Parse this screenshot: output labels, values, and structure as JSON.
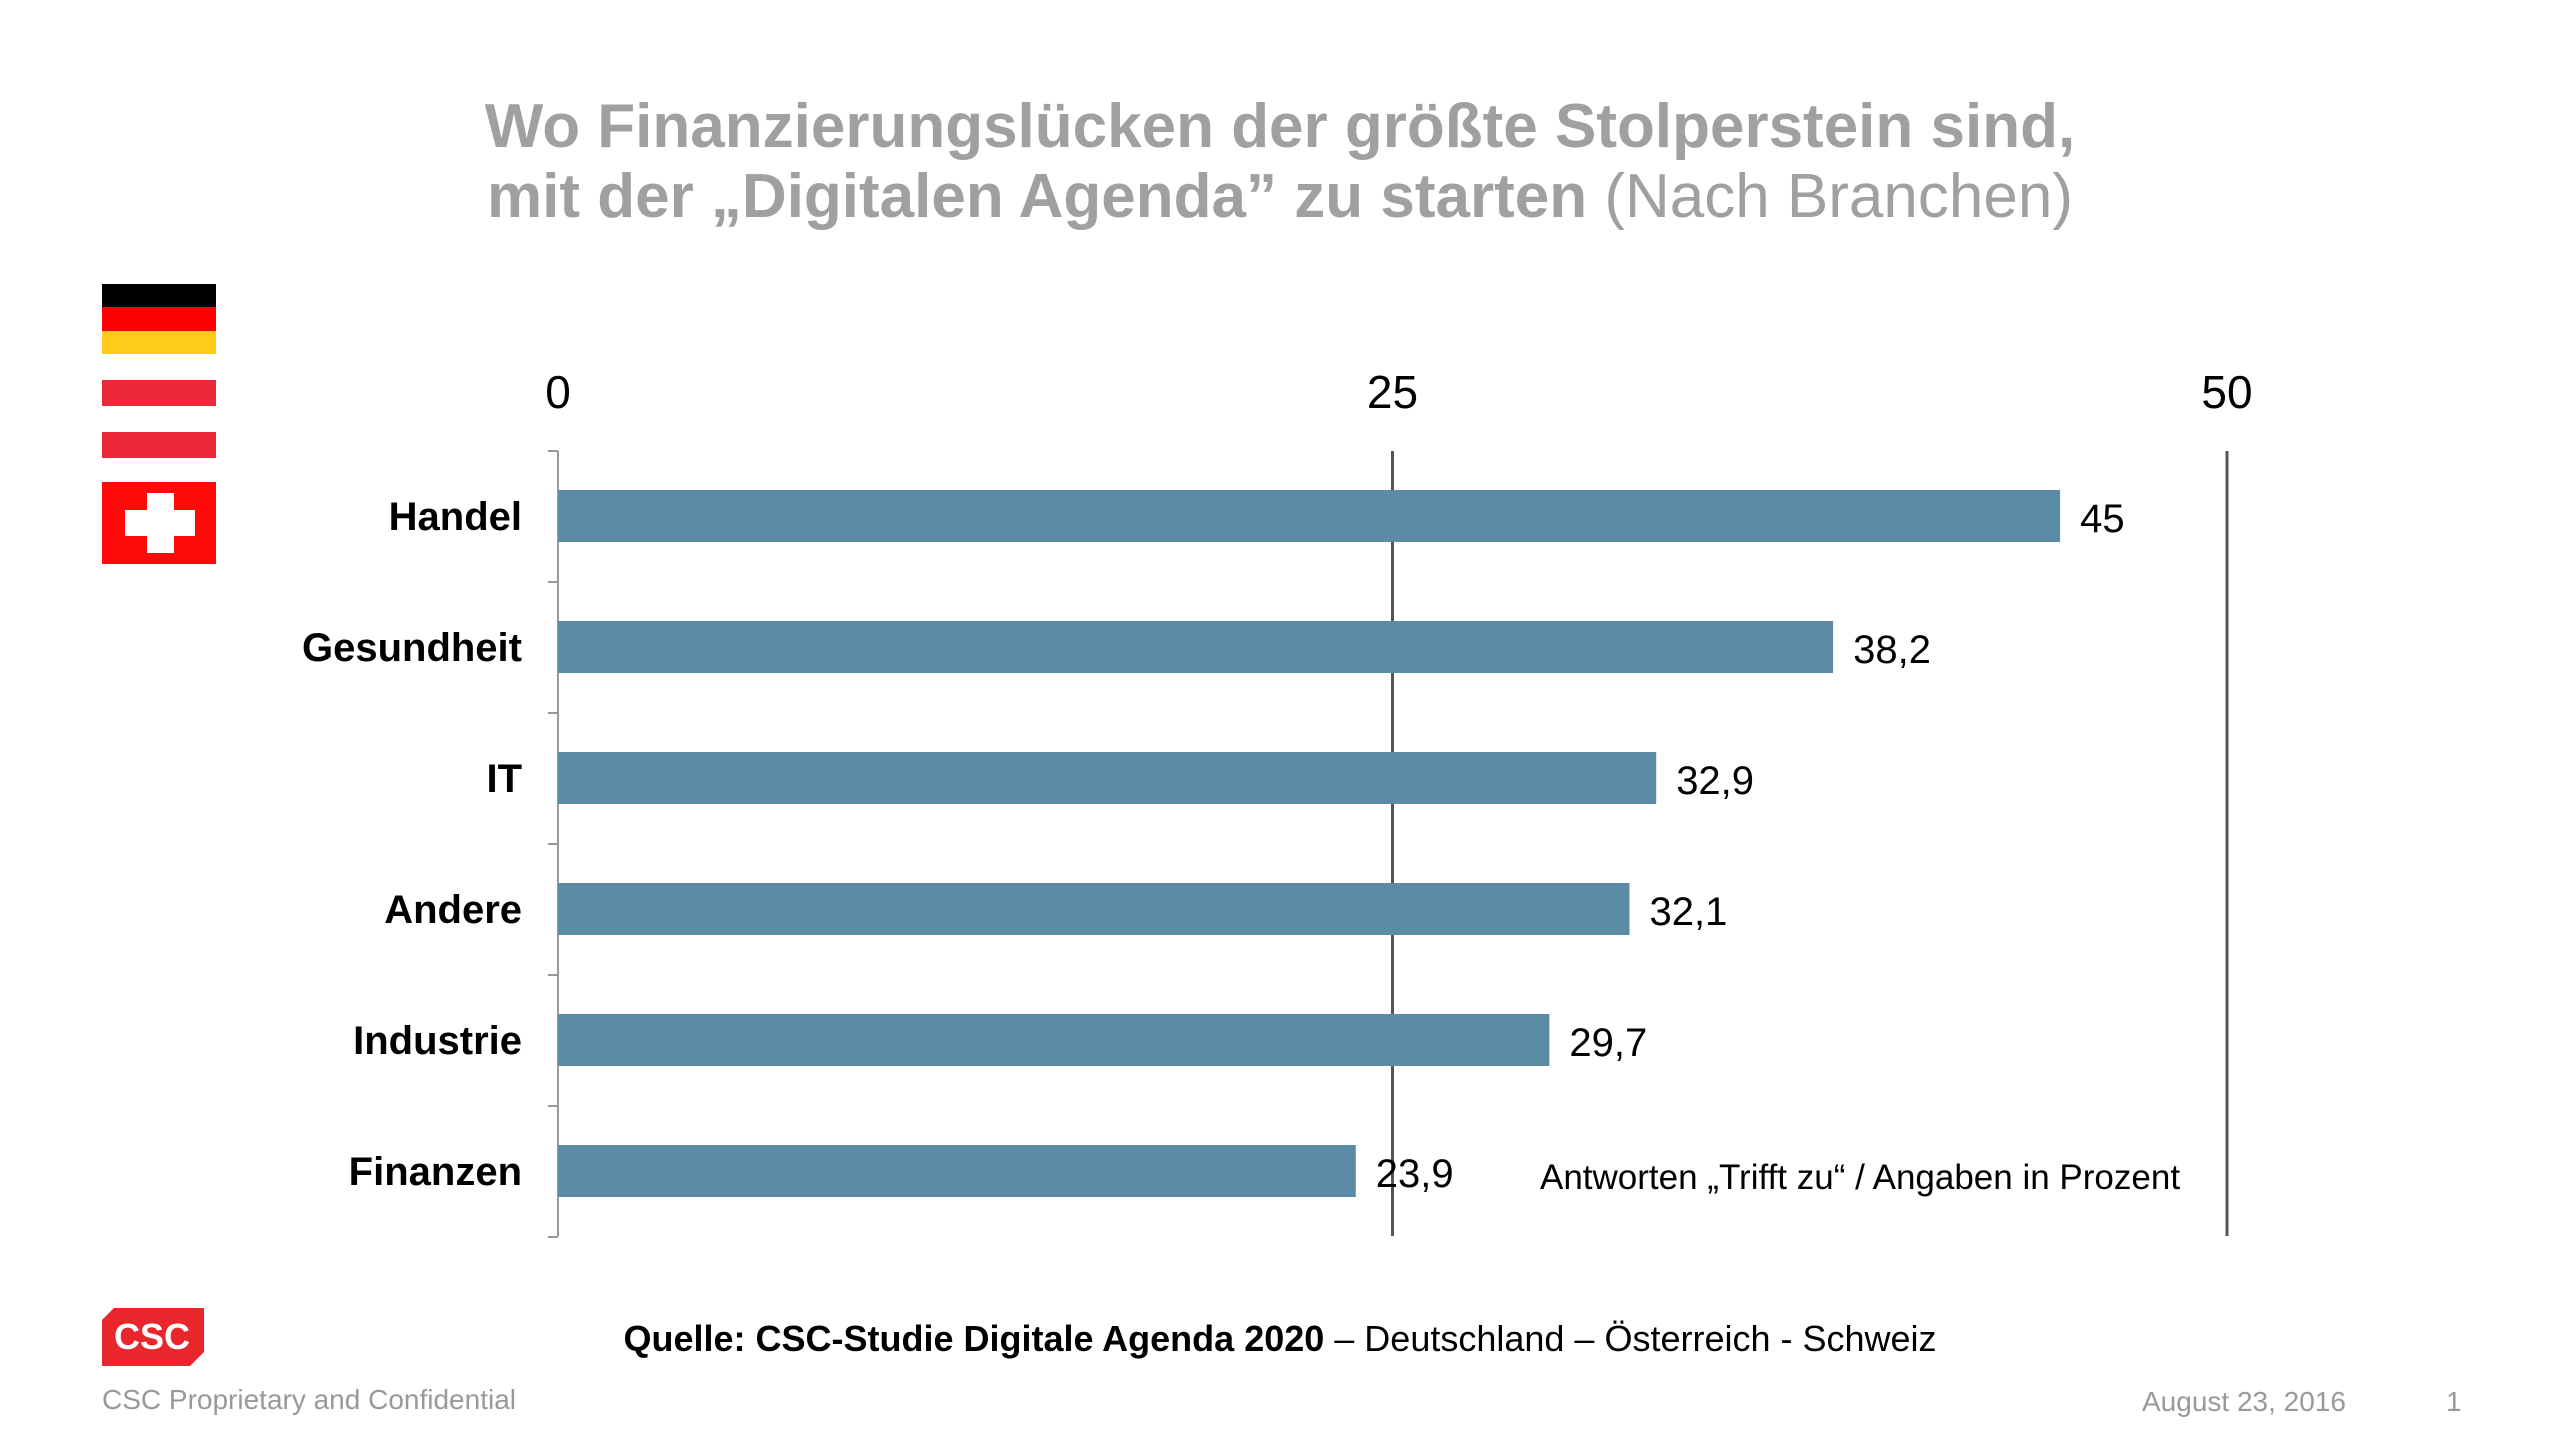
{
  "title": {
    "line1": "Wo Finanzierungslücken der größte Stolperstein sind,",
    "line2": "mit der „Digitalen Agenda” zu starten",
    "line2_suffix": "(Nach Branchen)"
  },
  "flags": [
    "germany-flag",
    "austria-flag",
    "switzerland-flag"
  ],
  "chart_data": {
    "type": "bar",
    "orientation": "horizontal",
    "categories": [
      "Handel",
      "Gesundheit",
      "IT",
      "Andere",
      "Industrie",
      "Finanzen"
    ],
    "values": [
      45,
      38.2,
      32.9,
      32.1,
      29.7,
      23.9
    ],
    "value_labels": [
      "45",
      "38,2",
      "32,9",
      "32,1",
      "29,7",
      "23,9"
    ],
    "xlim": [
      0,
      50
    ],
    "ticks": [
      "0",
      "25",
      "50"
    ],
    "tick_values": [
      0,
      25,
      50
    ],
    "axis_position": "top",
    "grid": true,
    "bar_color": "#5b8ba6",
    "annotation": "Antworten „Trifft zu“ / Angaben in Prozent"
  },
  "source": {
    "bold": "Quelle: CSC-Studie Digitale Agenda 2020",
    "rest": " – Deutschland – Österreich - Schweiz"
  },
  "footer": {
    "logo_text": "CSC",
    "confidential": "CSC Proprietary and Confidential",
    "date": "August 23, 2016",
    "page": "1"
  },
  "colors": {
    "logo": "#e8262b",
    "title": "#a0a0a0"
  }
}
